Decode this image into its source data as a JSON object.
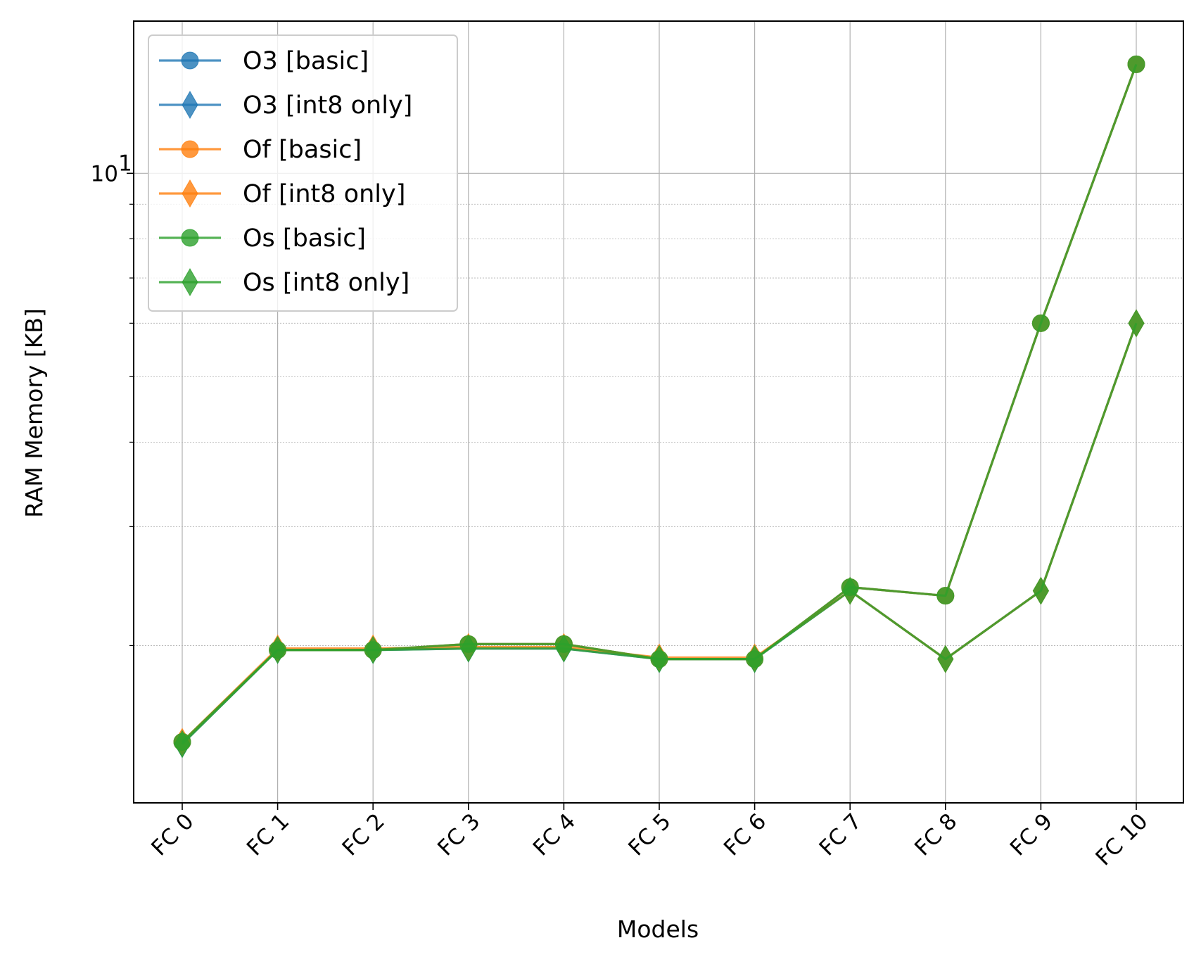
{
  "chart_data": {
    "type": "line",
    "title": "",
    "xlabel": "Models",
    "ylabel": "RAM Memory [KB]",
    "yscale": "log",
    "ylim": [
      1.17,
      16.8
    ],
    "y_major_tick_label": "10",
    "y_major_tick_exponent": "1",
    "grid": true,
    "legend_position": "upper left",
    "categories": [
      "FC 0",
      "FC 1",
      "FC 2",
      "FC 3",
      "FC 4",
      "FC 5",
      "FC 6",
      "FC 7",
      "FC 8",
      "FC 9",
      "FC 10"
    ],
    "series": [
      {
        "name": "O3 [basic]",
        "marker": "circle",
        "color": "#1f77b4",
        "values": [
          1.44,
          1.97,
          1.97,
          2.01,
          2.01,
          1.91,
          1.91,
          2.44,
          2.37,
          6.0,
          14.5
        ]
      },
      {
        "name": "O3 [int8 only]",
        "marker": "diamond",
        "color": "#1f77b4",
        "values": [
          1.43,
          1.97,
          1.97,
          1.98,
          1.98,
          1.91,
          1.91,
          2.41,
          1.91,
          2.41,
          6.0
        ]
      },
      {
        "name": "Of [basic]",
        "marker": "circle",
        "color": "#ff7f0e",
        "values": [
          1.44,
          1.97,
          1.97,
          2.01,
          2.01,
          1.91,
          1.91,
          2.44,
          2.37,
          6.0,
          14.5
        ]
      },
      {
        "name": "Of [int8 only]",
        "marker": "diamond",
        "color": "#ff7f0e",
        "values": [
          1.44,
          1.98,
          1.98,
          1.99,
          1.99,
          1.92,
          1.92,
          2.41,
          1.91,
          2.41,
          6.0
        ]
      },
      {
        "name": "Os [basic]",
        "marker": "circle",
        "color": "#2ca02c",
        "values": [
          1.44,
          1.97,
          1.97,
          2.01,
          2.01,
          1.91,
          1.91,
          2.44,
          2.37,
          6.0,
          14.5
        ]
      },
      {
        "name": "Os [int8 only]",
        "marker": "diamond",
        "color": "#2ca02c",
        "values": [
          1.43,
          1.97,
          1.97,
          1.98,
          1.98,
          1.91,
          1.91,
          2.41,
          1.91,
          2.41,
          6.0
        ]
      }
    ]
  }
}
